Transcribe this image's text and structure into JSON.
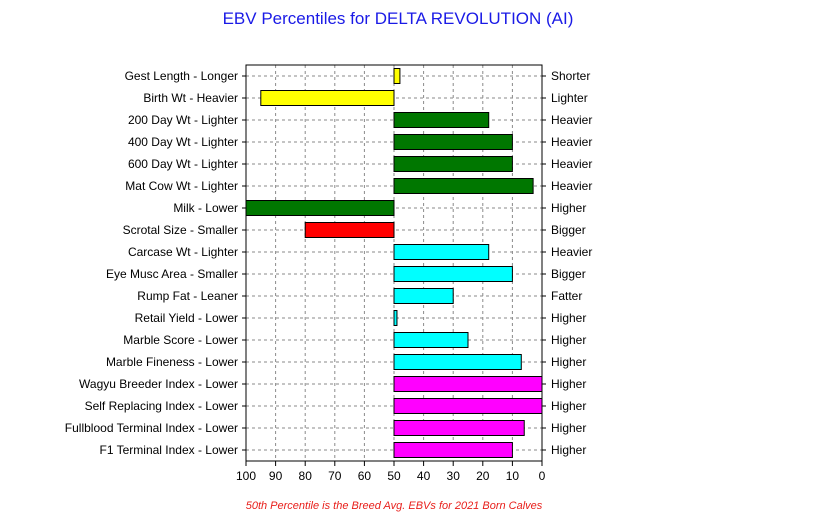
{
  "chart_data": {
    "type": "bar",
    "title": "EBV Percentiles for DELTA REVOLUTION (AI)",
    "footnote": "50th Percentile is the Breed Avg. EBVs for 2021 Born Calves",
    "baseline": 50,
    "xlim": [
      100,
      0
    ],
    "x_ticks": [
      "100",
      "90",
      "80",
      "70",
      "60",
      "50",
      "40",
      "30",
      "20",
      "10",
      "0"
    ],
    "grid": true,
    "rows": [
      {
        "left": "Gest Length - Longer",
        "right": "Shorter",
        "value": 48,
        "color": "#ffff00"
      },
      {
        "left": "Birth Wt - Heavier",
        "right": "Lighter",
        "value": 95,
        "color": "#ffff00"
      },
      {
        "left": "200 Day Wt - Lighter",
        "right": "Heavier",
        "value": 18,
        "color": "#007700"
      },
      {
        "left": "400 Day Wt - Lighter",
        "right": "Heavier",
        "value": 10,
        "color": "#007700"
      },
      {
        "left": "600 Day Wt - Lighter",
        "right": "Heavier",
        "value": 10,
        "color": "#007700"
      },
      {
        "left": "Mat Cow Wt - Lighter",
        "right": "Heavier",
        "value": 3,
        "color": "#007700"
      },
      {
        "left": "Milk - Lower",
        "right": "Higher",
        "value": 100,
        "color": "#007700"
      },
      {
        "left": "Scrotal Size - Smaller",
        "right": "Bigger",
        "value": 80,
        "color": "#ff0000"
      },
      {
        "left": "Carcase Wt - Lighter",
        "right": "Heavier",
        "value": 18,
        "color": "#00ffff"
      },
      {
        "left": "Eye Musc Area - Smaller",
        "right": "Bigger",
        "value": 10,
        "color": "#00ffff"
      },
      {
        "left": "Rump Fat - Leaner",
        "right": "Fatter",
        "value": 30,
        "color": "#00ffff"
      },
      {
        "left": "Retail Yield - Lower",
        "right": "Higher",
        "value": 49,
        "color": "#00ffff"
      },
      {
        "left": "Marble Score - Lower",
        "right": "Higher",
        "value": 25,
        "color": "#00ffff"
      },
      {
        "left": "Marble Fineness - Lower",
        "right": "Higher",
        "value": 7,
        "color": "#00ffff"
      },
      {
        "left": "Wagyu Breeder Index - Lower",
        "right": "Higher",
        "value": 0,
        "color": "#ff00ff"
      },
      {
        "left": "Self Replacing Index - Lower",
        "right": "Higher",
        "value": 0,
        "color": "#ff00ff"
      },
      {
        "left": "Fullblood Terminal Index - Lower",
        "right": "Higher",
        "value": 6,
        "color": "#ff00ff"
      },
      {
        "left": "F1 Terminal Index - Lower",
        "right": "Higher",
        "value": 10,
        "color": "#ff00ff"
      }
    ]
  }
}
